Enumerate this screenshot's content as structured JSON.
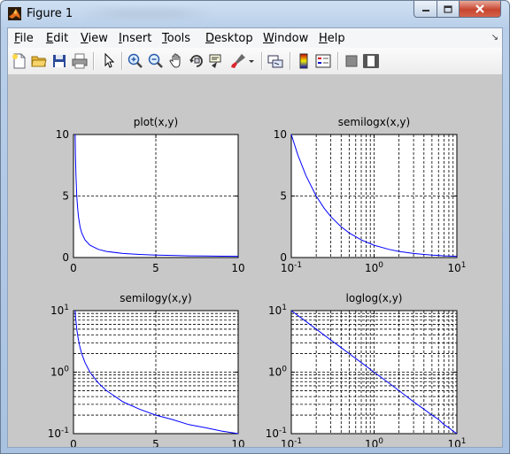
{
  "window": {
    "title": "Figure 1"
  },
  "menu": [
    "File",
    "Edit",
    "View",
    "Insert",
    "Tools",
    "Desktop",
    "Window",
    "Help"
  ],
  "toolbar": {
    "icons": [
      "new-figure-icon",
      "open-file-icon",
      "save-icon",
      "print-icon",
      "pointer-icon",
      "zoom-in-icon",
      "zoom-out-icon",
      "pan-icon",
      "rotate-3d-icon",
      "data-cursor-icon",
      "brush-icon",
      "brush-dropdown-icon",
      "link-plot-icon",
      "colorbar-icon",
      "legend-icon",
      "hide-plot-tools-icon",
      "show-plot-tools-icon"
    ]
  },
  "colors": {
    "line": "#0000ff",
    "figure_bg": "#c8c8c8",
    "axes_bg": "#ffffff"
  },
  "chart_data": [
    {
      "type": "line",
      "title": "plot(x,y)",
      "xscale": "linear",
      "yscale": "linear",
      "xlim": [
        0,
        10
      ],
      "ylim": [
        0,
        10
      ],
      "grid": true,
      "xticks": [
        "0",
        "5",
        "10"
      ],
      "yticks": [
        "0",
        "5",
        "10"
      ],
      "series": [
        {
          "x": [
            0.1,
            0.12,
            0.15,
            0.2,
            0.25,
            0.3,
            0.4,
            0.5,
            0.7,
            1,
            1.5,
            2,
            3,
            4,
            5,
            6,
            7,
            8,
            9,
            10
          ],
          "y": [
            10,
            8.33,
            6.67,
            5,
            4,
            3.33,
            2.5,
            2,
            1.43,
            1,
            0.67,
            0.5,
            0.33,
            0.25,
            0.2,
            0.17,
            0.14,
            0.125,
            0.11,
            0.1
          ]
        }
      ]
    },
    {
      "type": "line",
      "title": "semilogx(x,y)",
      "xscale": "log",
      "yscale": "linear",
      "xlim": [
        0.1,
        10
      ],
      "ylim": [
        0,
        10
      ],
      "grid": true,
      "xticks": [
        "10^-1",
        "10^0",
        "10^1"
      ],
      "yticks": [
        "0",
        "5",
        "10"
      ],
      "series": [
        {
          "x": [
            0.1,
            0.12,
            0.15,
            0.2,
            0.25,
            0.3,
            0.4,
            0.5,
            0.7,
            1,
            1.5,
            2,
            3,
            4,
            5,
            6,
            7,
            8,
            9,
            10
          ],
          "y": [
            10,
            8.33,
            6.67,
            5,
            4,
            3.33,
            2.5,
            2,
            1.43,
            1,
            0.67,
            0.5,
            0.33,
            0.25,
            0.2,
            0.17,
            0.14,
            0.125,
            0.11,
            0.1
          ]
        }
      ]
    },
    {
      "type": "line",
      "title": "semilogy(x,y)",
      "xscale": "linear",
      "yscale": "log",
      "xlim": [
        0,
        10
      ],
      "ylim": [
        0.1,
        10
      ],
      "grid": true,
      "xticks": [
        "0",
        "5",
        "10"
      ],
      "yticks": [
        "10^-1",
        "10^0",
        "10^1"
      ],
      "series": [
        {
          "x": [
            0.1,
            0.12,
            0.15,
            0.2,
            0.25,
            0.3,
            0.4,
            0.5,
            0.7,
            1,
            1.5,
            2,
            3,
            4,
            5,
            6,
            7,
            8,
            9,
            10
          ],
          "y": [
            10,
            8.33,
            6.67,
            5,
            4,
            3.33,
            2.5,
            2,
            1.43,
            1,
            0.67,
            0.5,
            0.33,
            0.25,
            0.2,
            0.17,
            0.14,
            0.125,
            0.11,
            0.1
          ]
        }
      ]
    },
    {
      "type": "line",
      "title": "loglog(x,y)",
      "xscale": "log",
      "yscale": "log",
      "xlim": [
        0.1,
        10
      ],
      "ylim": [
        0.1,
        10
      ],
      "grid": true,
      "xticks": [
        "10^-1",
        "10^0",
        "10^1"
      ],
      "yticks": [
        "10^-1",
        "10^0",
        "10^1"
      ],
      "series": [
        {
          "x": [
            0.1,
            0.12,
            0.15,
            0.2,
            0.25,
            0.3,
            0.4,
            0.5,
            0.7,
            1,
            1.5,
            2,
            3,
            4,
            5,
            6,
            7,
            8,
            9,
            10
          ],
          "y": [
            10,
            8.33,
            6.67,
            5,
            4,
            3.33,
            2.5,
            2,
            1.43,
            1,
            0.67,
            0.5,
            0.33,
            0.25,
            0.2,
            0.17,
            0.14,
            0.125,
            0.11,
            0.1
          ]
        }
      ]
    }
  ]
}
